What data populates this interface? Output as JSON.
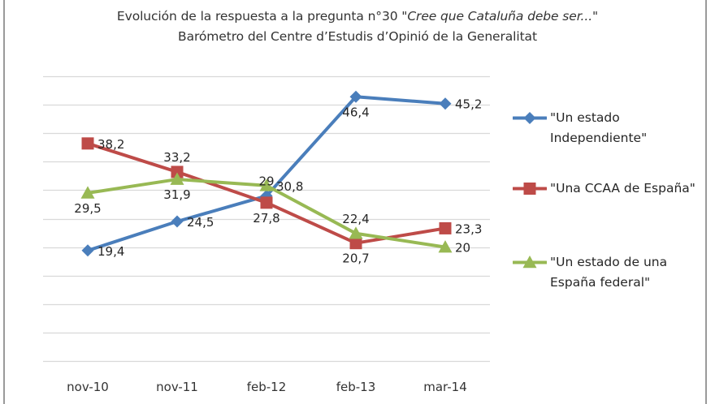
{
  "chart_data": {
    "type": "line",
    "title": "Evolución de la respuesta a la pregunta nº30 \"Cree que Cataluña debe ser...\"",
    "title_prefix": "Evolución de la respuesta a la pregunta n°30 ",
    "title_italic": "\"Cree que Cataluña debe ser...\"",
    "subtitle": "Barómetro del Centre d’Estudis d’Opinió de la Generalitat",
    "xlabel": "",
    "ylabel": "",
    "categories": [
      "nov-10",
      "nov-11",
      "feb-12",
      "feb-13",
      "mar-14"
    ],
    "ylim": [
      0,
      50
    ],
    "ytick_step": 5,
    "ytick_labels_visible": false,
    "grid": true,
    "legend_position": "right",
    "series": [
      {
        "name": "\"Un estado Independiente\"",
        "legend_lines": [
          "\"Un estado",
          "Independiente\""
        ],
        "color": "#4A7EBB",
        "marker": "diamond",
        "values": [
          19.4,
          24.5,
          29,
          46.4,
          45.2
        ],
        "labels": [
          "19,4",
          "24,5",
          "29",
          "46,4",
          "45,2"
        ],
        "label_positions": [
          "right",
          "right",
          "above",
          "below",
          "right"
        ]
      },
      {
        "name": "\"Una CCAA de España\"",
        "legend_lines": [
          "\"Una CCAA de España\""
        ],
        "color": "#BE4B48",
        "marker": "square",
        "values": [
          38.2,
          33.2,
          27.8,
          20.7,
          23.3
        ],
        "labels": [
          "38,2",
          "33,2",
          "27,8",
          "20,7",
          "23,3"
        ],
        "label_positions": [
          "right",
          "above",
          "below",
          "below",
          "right"
        ]
      },
      {
        "name": "\"Un estado de una España federal\"",
        "legend_lines": [
          "\"Un estado de una",
          "España federal\""
        ],
        "color": "#98B954",
        "marker": "triangle",
        "values": [
          29.5,
          31.9,
          30.8,
          22.4,
          20
        ],
        "labels": [
          "29,5",
          "31,9",
          "30,8",
          "22,4",
          "20"
        ],
        "label_positions": [
          "below",
          "below",
          "right",
          "above",
          "right"
        ]
      }
    ]
  }
}
